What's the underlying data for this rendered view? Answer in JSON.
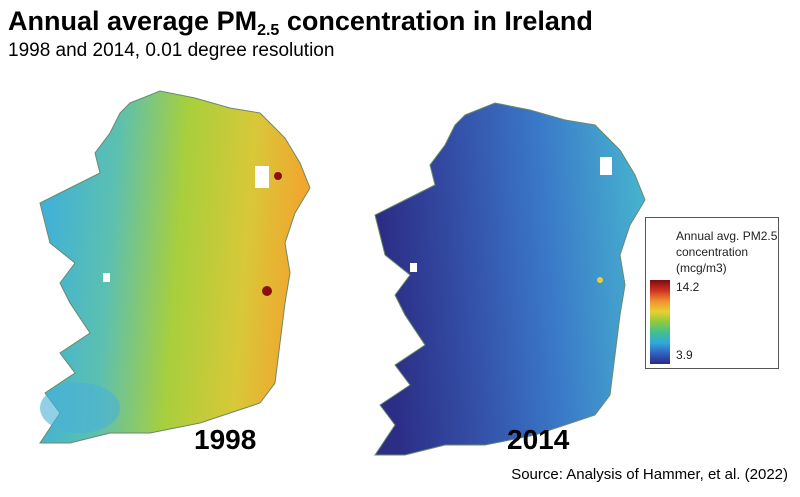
{
  "header": {
    "title": "Annual average PM",
    "title_sub": "2.5",
    "title_rest": " concentration in Ireland",
    "subtitle": "1998 and 2014, 0.01 degree resolution"
  },
  "maps": [
    {
      "year": "1998",
      "colors": {
        "west": "#3aaee0",
        "mid": "#a8cf3c",
        "east": "#f2a52e",
        "hotspot": "#8a1010"
      }
    },
    {
      "year": "2014",
      "colors": {
        "west": "#2c2e86",
        "mid": "#3a78c8",
        "east": "#48b8d0",
        "hotspot": "#e8d030"
      }
    }
  ],
  "legend": {
    "title_line1": "Annual avg. PM2.5",
    "title_line2": "concentration",
    "title_line3": "(mcg/m3)",
    "max": "14.2",
    "min": "3.9",
    "colormap": [
      "#7a0c10",
      "#d03020",
      "#f09030",
      "#e8d030",
      "#90c840",
      "#40c090",
      "#30a8d8",
      "#3060c0",
      "#2c2a80"
    ]
  },
  "source": "Source: Analysis of Hammer, et al. (2022)"
}
